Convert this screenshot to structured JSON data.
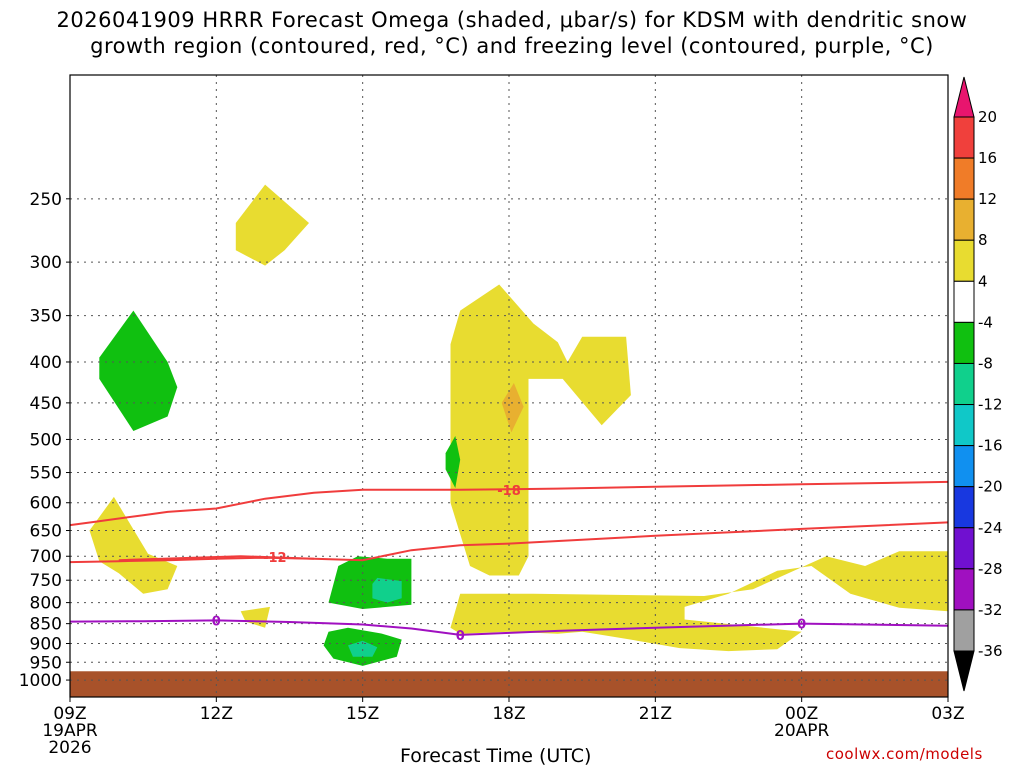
{
  "title_line1": "2026041909 HRRR Forecast Omega (shaded, μbar/s) for KDSM with dendritic snow",
  "title_line2": "growth region (contoured, red, °C) and freezing level (contoured, purple, °C)",
  "x_axis_title": "Forecast Time (UTC)",
  "credit": "coolwx.com/models",
  "chart_data": {
    "type": "heatmap",
    "title": "2026041909 HRRR Forecast Omega (shaded, μbar/s) for KDSM with dendritic snow growth region (contoured, red, °C) and freezing level (contoured, purple, °C)",
    "xlabel": "Forecast Time (UTC)",
    "ylabel": "",
    "x_range_hours": [
      0,
      18
    ],
    "y_range_hpa": [
      1050,
      175
    ],
    "y_scale": "log-pressure",
    "grid": true,
    "x_ticks": [
      {
        "hour": 0,
        "label": "09Z",
        "sub1": "19APR",
        "sub2": "2026"
      },
      {
        "hour": 3,
        "label": "12Z",
        "sub1": "",
        "sub2": ""
      },
      {
        "hour": 6,
        "label": "15Z",
        "sub1": "",
        "sub2": ""
      },
      {
        "hour": 9,
        "label": "18Z",
        "sub1": "",
        "sub2": ""
      },
      {
        "hour": 12,
        "label": "21Z",
        "sub1": "",
        "sub2": ""
      },
      {
        "hour": 15,
        "label": "00Z",
        "sub1": "20APR",
        "sub2": ""
      },
      {
        "hour": 18,
        "label": "03Z",
        "sub1": "",
        "sub2": ""
      }
    ],
    "y_ticks": [
      250,
      300,
      350,
      400,
      450,
      500,
      550,
      600,
      650,
      700,
      750,
      800,
      850,
      900,
      950,
      1000
    ],
    "colorbar": {
      "labels": [
        "20",
        "16",
        "12",
        "8",
        "4",
        "-4",
        "-8",
        "-12",
        "-16",
        "-20",
        "-24",
        "-28",
        "-32",
        "-36"
      ],
      "colors": [
        "#e8156e",
        "#f0403c",
        "#f07c28",
        "#e8b030",
        "#e8dc30",
        "#ffffff",
        "#10c010",
        "#10d08c",
        "#10c8c8",
        "#1090f0",
        "#1838e0",
        "#7010d0",
        "#a010c0",
        "#a0a0a0",
        "#000000"
      ]
    },
    "contours": [
      {
        "name": "-18",
        "color": "#f03c3c",
        "points": [
          [
            0,
            640
          ],
          [
            0.5,
            634
          ],
          [
            1.5,
            622
          ],
          [
            2,
            616
          ],
          [
            3,
            610
          ],
          [
            4,
            593
          ],
          [
            5,
            583
          ],
          [
            6,
            578
          ],
          [
            8,
            578
          ],
          [
            10,
            576
          ],
          [
            12,
            573
          ],
          [
            15,
            569
          ],
          [
            18,
            565
          ]
        ],
        "labels": [
          [
            9,
            578
          ]
        ]
      },
      {
        "name": "-18b",
        "color": "#f03c3c",
        "points": [
          [
            0,
            712
          ],
          [
            1,
            710
          ],
          [
            2,
            708
          ],
          [
            3,
            705
          ],
          [
            4,
            703
          ],
          [
            5,
            705
          ],
          [
            6,
            708
          ],
          [
            7,
            688
          ],
          [
            8,
            678
          ],
          [
            9,
            675
          ],
          [
            12,
            660
          ],
          [
            15,
            647
          ],
          [
            18,
            635
          ]
        ],
        "labels": []
      },
      {
        "name": "-12",
        "color": "#f03c3c",
        "points": [
          [
            1,
            708
          ],
          [
            3.5,
            700
          ],
          [
            5,
            705
          ]
        ],
        "labels": [
          [
            4.2,
            702
          ]
        ]
      },
      {
        "name": "0",
        "color": "#a010c0",
        "points": [
          [
            0,
            845
          ],
          [
            1.5,
            844
          ],
          [
            3,
            842
          ],
          [
            4.5,
            846
          ],
          [
            6,
            852
          ],
          [
            7,
            862
          ],
          [
            8,
            878
          ],
          [
            9,
            873
          ],
          [
            10,
            868
          ],
          [
            12,
            860
          ],
          [
            15,
            850
          ],
          [
            18,
            855
          ]
        ],
        "labels": [
          [
            3,
            842
          ],
          [
            8,
            878
          ],
          [
            15,
            850
          ]
        ]
      }
    ],
    "shaded_regions": [
      {
        "value": "4 to 8",
        "color": "#e8dc30",
        "points": [
          [
            3.4,
            268
          ],
          [
            4,
            240
          ],
          [
            4.9,
            268
          ],
          [
            4.4,
            290
          ],
          [
            4,
            303
          ],
          [
            3.4,
            290
          ]
        ]
      },
      {
        "value": "4 to 8",
        "color": "#e8dc30",
        "points": [
          [
            8,
            345
          ],
          [
            8.8,
            320
          ],
          [
            9.5,
            358
          ],
          [
            10,
            378
          ],
          [
            10.2,
            400
          ],
          [
            10.5,
            372
          ],
          [
            11.4,
            372
          ],
          [
            11.5,
            440
          ],
          [
            10.9,
            480
          ],
          [
            10.1,
            420
          ],
          [
            9.4,
            420
          ],
          [
            9.4,
            560
          ],
          [
            9.4,
            700
          ],
          [
            9.2,
            740
          ],
          [
            8.6,
            740
          ],
          [
            8.2,
            720
          ],
          [
            7.8,
            600
          ],
          [
            7.8,
            420
          ],
          [
            7.8,
            380
          ]
        ]
      },
      {
        "value": "8 to 12",
        "color": "#e8b030",
        "points": [
          [
            8.85,
            450
          ],
          [
            9.1,
            425
          ],
          [
            9.3,
            455
          ],
          [
            9.05,
            490
          ]
        ]
      },
      {
        "value": "4 to 8",
        "color": "#e8dc30",
        "points": [
          [
            0.4,
            650
          ],
          [
            0.9,
            590
          ],
          [
            1.6,
            695
          ],
          [
            2.2,
            720
          ],
          [
            2,
            770
          ],
          [
            1.5,
            780
          ],
          [
            1,
            735
          ],
          [
            0.6,
            710
          ]
        ]
      },
      {
        "value": "4 to 8",
        "color": "#e8dc30",
        "points": [
          [
            3.5,
            820
          ],
          [
            4.1,
            810
          ],
          [
            4,
            860
          ],
          [
            3.6,
            845
          ]
        ]
      },
      {
        "value": "4 to 8",
        "color": "#e8dc30",
        "points": [
          [
            8,
            780
          ],
          [
            9.5,
            780
          ],
          [
            13,
            785
          ],
          [
            14,
            770
          ],
          [
            15.5,
            700
          ],
          [
            16.3,
            720
          ],
          [
            17,
            690
          ],
          [
            18,
            690
          ],
          [
            18,
            820
          ],
          [
            17,
            812
          ],
          [
            16,
            780
          ],
          [
            15.2,
            720
          ],
          [
            14.5,
            730
          ],
          [
            13.5,
            780
          ],
          [
            12.6,
            810
          ],
          [
            12.6,
            840
          ],
          [
            15,
            870
          ],
          [
            14.5,
            915
          ],
          [
            13.5,
            920
          ],
          [
            12.5,
            912
          ],
          [
            11.5,
            890
          ],
          [
            10.5,
            870
          ],
          [
            10,
            875
          ],
          [
            9,
            870
          ],
          [
            8,
            875
          ],
          [
            7.8,
            860
          ]
        ]
      },
      {
        "value": "-4 to -8",
        "color": "#10c010",
        "points": [
          [
            0.6,
            395
          ],
          [
            1.3,
            345
          ],
          [
            2,
            400
          ],
          [
            2.2,
            430
          ],
          [
            2,
            468
          ],
          [
            1.3,
            488
          ],
          [
            0.6,
            420
          ]
        ]
      },
      {
        "value": "-4 to -8",
        "color": "#10c010",
        "points": [
          [
            7.7,
            520
          ],
          [
            7.9,
            495
          ],
          [
            8,
            530
          ],
          [
            7.9,
            575
          ],
          [
            7.7,
            545
          ]
        ]
      },
      {
        "value": "-4 to -8",
        "color": "#10c010",
        "points": [
          [
            5.9,
            700
          ],
          [
            6.5,
            705
          ],
          [
            7,
            705
          ],
          [
            7,
            805
          ],
          [
            6,
            815
          ],
          [
            5.3,
            800
          ],
          [
            5.5,
            720
          ]
        ]
      },
      {
        "value": "-8 to -12",
        "color": "#10d08c",
        "points": [
          [
            6.2,
            758
          ],
          [
            6.3,
            745
          ],
          [
            6.8,
            752
          ],
          [
            6.8,
            790
          ],
          [
            6.5,
            800
          ],
          [
            6.2,
            790
          ]
        ]
      },
      {
        "value": "-4 to -8",
        "color": "#10c010",
        "points": [
          [
            5.3,
            870
          ],
          [
            5.7,
            860
          ],
          [
            6.4,
            875
          ],
          [
            6.8,
            890
          ],
          [
            6.7,
            935
          ],
          [
            6,
            960
          ],
          [
            5.4,
            940
          ],
          [
            5.2,
            905
          ]
        ]
      },
      {
        "value": "-8 to -12",
        "color": "#10d08c",
        "points": [
          [
            5.7,
            905
          ],
          [
            6,
            893
          ],
          [
            6.3,
            910
          ],
          [
            6.2,
            935
          ],
          [
            5.8,
            935
          ]
        ]
      }
    ],
    "surface": {
      "color": "#a8522a",
      "from_hpa": 975
    }
  }
}
